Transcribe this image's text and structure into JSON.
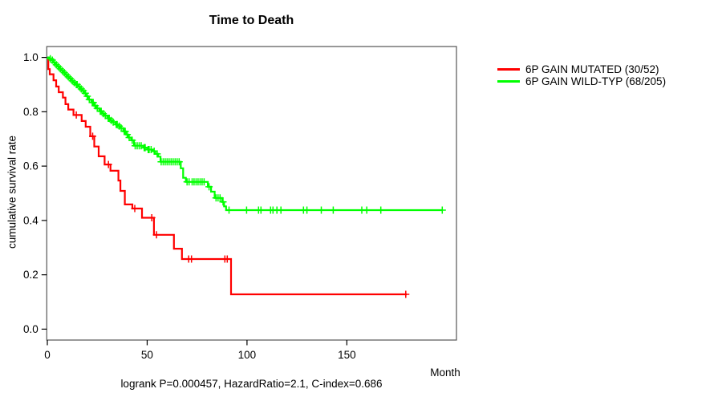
{
  "title": "Time to Death",
  "caption": "logrank P=0.000457, HazardRatio=2.1, C-index=0.686",
  "axes": {
    "x": {
      "title": "Month",
      "tick_values": [
        0,
        50,
        100,
        150
      ],
      "tick_labels": [
        "0",
        "50",
        "100",
        "150"
      ]
    },
    "y": {
      "title": "cumulative survival rate",
      "tick_values": [
        0,
        0.2,
        0.4,
        0.6,
        0.8,
        1
      ],
      "tick_labels": [
        "0.0",
        "0.2",
        "0.4",
        "0.6",
        "0.8",
        "1.0"
      ]
    }
  },
  "legend": {
    "position": "top-right-outside",
    "items": [
      {
        "label": "6P GAIN MUTATED (30/52)",
        "color": "#ff0000"
      },
      {
        "label": "6P GAIN WILD-TYP (68/205)",
        "color": "#00ff00"
      }
    ]
  },
  "colors": {
    "mutated": "#ff0000",
    "wildtype": "#00ff00",
    "frame": "#555555",
    "text": "#000000"
  },
  "chart_data": {
    "type": "line",
    "subtype": "kaplan-meier-step",
    "title": "Time to Death",
    "xlabel": "Month",
    "ylabel": "cumulative survival rate",
    "xlim": [
      0,
      198
    ],
    "ylim": [
      0,
      1
    ],
    "grid": false,
    "legend_position": "top-right-outside",
    "annotation": "logrank P=0.000457, HazardRatio=2.1, C-index=0.686",
    "series": [
      {
        "name": "6P GAIN MUTATED (30/52)",
        "color": "#ff0000",
        "n": 52,
        "events": 30,
        "steps": [
          [
            0,
            1.0
          ],
          [
            0.5,
            0.957
          ],
          [
            1.2,
            0.938
          ],
          [
            3.1,
            0.916
          ],
          [
            4.4,
            0.893
          ],
          [
            5.7,
            0.872
          ],
          [
            7.8,
            0.852
          ],
          [
            9.1,
            0.828
          ],
          [
            10.5,
            0.808
          ],
          [
            13.1,
            0.788
          ],
          [
            17.2,
            0.766
          ],
          [
            19.2,
            0.745
          ],
          [
            21.5,
            0.71
          ],
          [
            23.5,
            0.672
          ],
          [
            25.7,
            0.636
          ],
          [
            28.7,
            0.606
          ],
          [
            31.6,
            0.583
          ],
          [
            35.6,
            0.547
          ],
          [
            36.6,
            0.509
          ],
          [
            38.8,
            0.459
          ],
          [
            42.6,
            0.444
          ],
          [
            47.4,
            0.41
          ],
          [
            53.4,
            0.347
          ],
          [
            63.4,
            0.296
          ],
          [
            67.4,
            0.258
          ],
          [
            92,
            0.128
          ]
        ],
        "end_time": 180,
        "censor_times": [
          14.5,
          22.7,
          30.6,
          43.8,
          52.3,
          54.7,
          70.8,
          72.2,
          88.9,
          90.1,
          179.5
        ]
      },
      {
        "name": "6P GAIN WILD-TYP (68/205)",
        "color": "#00ff00",
        "n": 205,
        "events": 68,
        "steps": [
          [
            0,
            1.0
          ],
          [
            1,
            0.995
          ],
          [
            2,
            0.99
          ],
          [
            3,
            0.981
          ],
          [
            4,
            0.973
          ],
          [
            5,
            0.966
          ],
          [
            6,
            0.958
          ],
          [
            7,
            0.951
          ],
          [
            8,
            0.944
          ],
          [
            9,
            0.936
          ],
          [
            10,
            0.929
          ],
          [
            11,
            0.922
          ],
          [
            12,
            0.914
          ],
          [
            13,
            0.907
          ],
          [
            14,
            0.9
          ],
          [
            15.5,
            0.892
          ],
          [
            16.5,
            0.884
          ],
          [
            17.5,
            0.877
          ],
          [
            18.5,
            0.868
          ],
          [
            19.5,
            0.857
          ],
          [
            20.5,
            0.845
          ],
          [
            22,
            0.834
          ],
          [
            23.5,
            0.822
          ],
          [
            24.5,
            0.813
          ],
          [
            26,
            0.802
          ],
          [
            27.5,
            0.793
          ],
          [
            28.6,
            0.786
          ],
          [
            30,
            0.776
          ],
          [
            31.5,
            0.768
          ],
          [
            32.6,
            0.762
          ],
          [
            34,
            0.753
          ],
          [
            35.5,
            0.747
          ],
          [
            36.6,
            0.74
          ],
          [
            38,
            0.728
          ],
          [
            39.5,
            0.716
          ],
          [
            40.6,
            0.705
          ],
          [
            42,
            0.695
          ],
          [
            43.4,
            0.675
          ],
          [
            48,
            0.668
          ],
          [
            50,
            0.661
          ],
          [
            52.7,
            0.655
          ],
          [
            54,
            0.645
          ],
          [
            55.5,
            0.635
          ],
          [
            56.7,
            0.616
          ],
          [
            66.8,
            0.592
          ],
          [
            68,
            0.557
          ],
          [
            69.4,
            0.542
          ],
          [
            80.4,
            0.524
          ],
          [
            82,
            0.506
          ],
          [
            83.8,
            0.483
          ],
          [
            87.5,
            0.468
          ],
          [
            88.5,
            0.452
          ],
          [
            89.5,
            0.438
          ]
        ],
        "end_time": 198,
        "censor_times": [
          1.5,
          2.5,
          3.5,
          4.5,
          5.5,
          6.5,
          7.5,
          8.5,
          9.5,
          10.5,
          11.5,
          12.5,
          13.5,
          14.5,
          15,
          16,
          17,
          18,
          19,
          20,
          21,
          22.5,
          23,
          24,
          25,
          26.5,
          27,
          28,
          29,
          30.5,
          31,
          32,
          33,
          34.5,
          35,
          36,
          37,
          38.5,
          39,
          40,
          41,
          42.5,
          44,
          45,
          46,
          47,
          48.5,
          49,
          50.5,
          51,
          52,
          53.5,
          55,
          57,
          58,
          59,
          60,
          61,
          62,
          63,
          64,
          65,
          66,
          70,
          71,
          72.5,
          73.5,
          74.5,
          75.5,
          76.5,
          77.5,
          78.5,
          81,
          84.5,
          85.5,
          86.5,
          88,
          91,
          99.8,
          105.8,
          107,
          111.8,
          113,
          115,
          117,
          128.3,
          130,
          137.2,
          143.2,
          157.5,
          160,
          167,
          197.8
        ]
      }
    ]
  }
}
